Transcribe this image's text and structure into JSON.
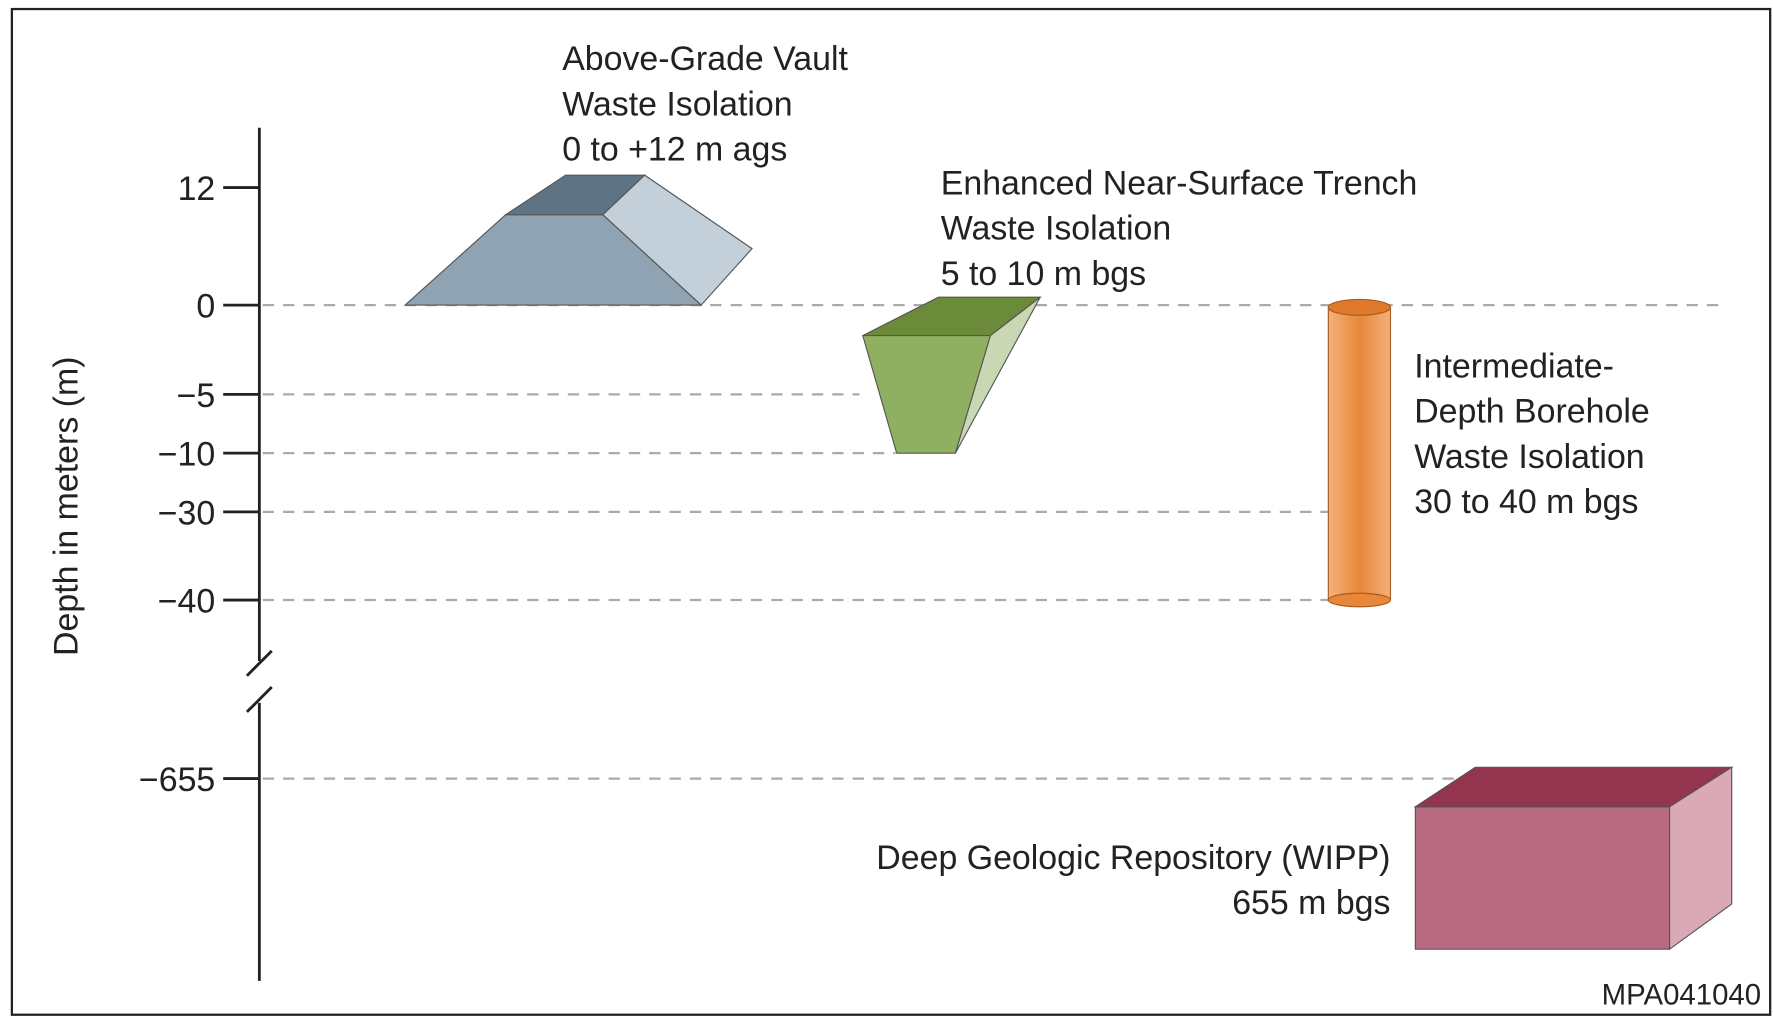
{
  "axis_label": "Depth in meters (m)",
  "ticks": [
    "12",
    "0",
    "−5",
    "−10",
    "−30",
    "−40",
    "−655"
  ],
  "facilities": [
    {
      "lines": [
        "Above-Grade Vault",
        "Waste Isolation",
        "0 to +12 m ags"
      ]
    },
    {
      "lines": [
        "Enhanced Near-Surface Trench",
        "Waste Isolation",
        "5 to 10 m bgs"
      ]
    },
    {
      "lines": [
        "Intermediate-",
        "Depth Borehole",
        "Waste Isolation",
        "30 to 40 m bgs"
      ]
    },
    {
      "lines": [
        "Deep Geologic Repository (WIPP)",
        "655 m bgs"
      ]
    }
  ],
  "figure_id": "MPA041040"
}
